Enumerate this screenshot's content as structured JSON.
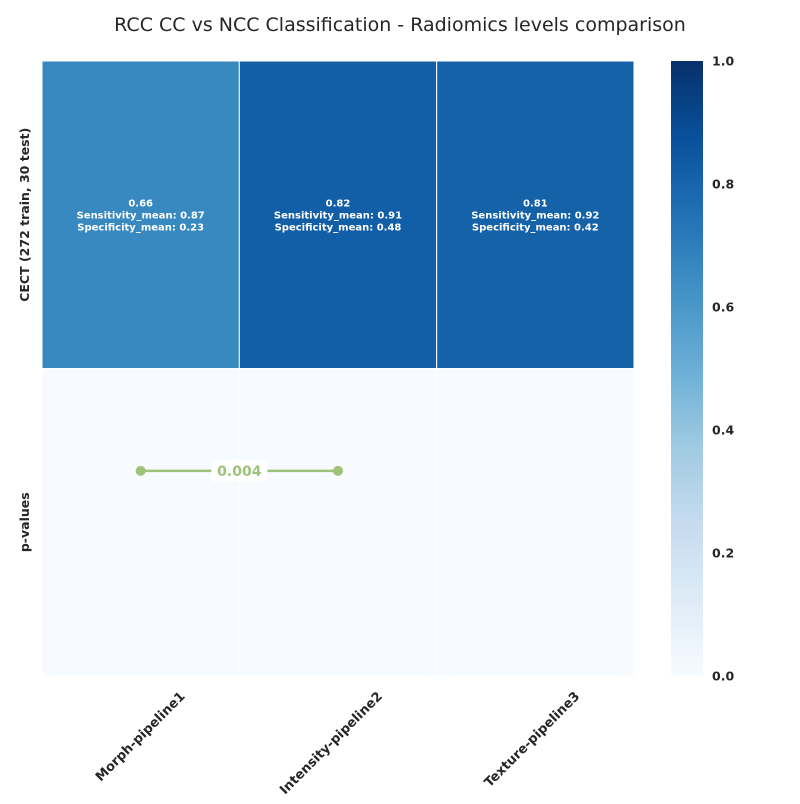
{
  "chart_data": {
    "type": "heatmap",
    "title": "RCC CC vs NCC Classification - Radiomics levels comparison",
    "columns": [
      "Morph-pipeline1",
      "Intensity-pipeline2",
      "Texture-pipeline3"
    ],
    "rows": [
      "CECT (272 train, 30 test)",
      "p-values"
    ],
    "cells": [
      [
        {
          "value": 0.66,
          "lines": [
            "0.66",
            "Sensitivity_mean: 0.87",
            "Specificity_mean: 0.23"
          ]
        },
        {
          "value": 0.82,
          "lines": [
            "0.82",
            "Sensitivity_mean: 0.91",
            "Specificity_mean: 0.48"
          ]
        },
        {
          "value": 0.81,
          "lines": [
            "0.81",
            "Sensitivity_mean: 0.92",
            "Specificity_mean: 0.42"
          ]
        }
      ],
      [
        {
          "value": 0.0,
          "lines": []
        },
        {
          "value": 0.0,
          "lines": []
        },
        {
          "value": 0.0,
          "lines": []
        }
      ]
    ],
    "colormap": "Blues",
    "colorbar": {
      "min": 0.0,
      "max": 1.0,
      "ticks": [
        "0.0",
        "0.2",
        "0.4",
        "0.6",
        "0.8",
        "1.0"
      ]
    },
    "p_values": [
      {
        "from": "Morph-pipeline1",
        "to": "Intensity-pipeline2",
        "label": "0.004",
        "color": "#9dc27a"
      }
    ]
  }
}
